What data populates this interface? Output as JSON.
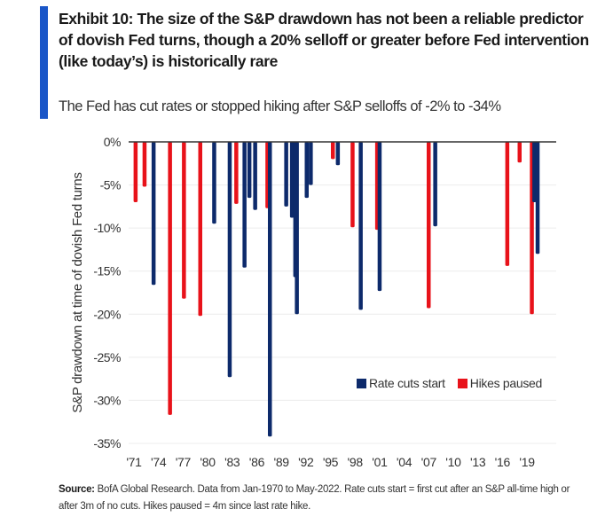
{
  "header": {
    "title": "Exhibit 10: The size of the S&P drawdown  has not been a reliable predictor of dovish Fed turns, though a 20% selloff or greater before Fed intervention (like today’s) is historically rare",
    "subtitle": "The Fed has cut rates or stopped hiking after S&P selloffs of -2% to -34%",
    "accent_color": "#1a56c8"
  },
  "footer": {
    "source_label": "Source:",
    "source_text": " BofA Global Research. Data from Jan-1970 to May-2022. Rate cuts start = first cut after an S&P all-time high or after 3m of no cuts. Hikes paused = 4m since last rate hike."
  },
  "chart_data": {
    "type": "bar",
    "title": "The Fed has cut rates or stopped hiking after S&P selloffs of -2% to -34%",
    "xlabel": "",
    "ylabel": "S&P drawdown at time of dovish Fed turns",
    "ylim": [
      -35,
      0
    ],
    "xlim": [
      1970.8,
      2021.5
    ],
    "yticks": [
      0,
      -5,
      -10,
      -15,
      -20,
      -25,
      -30,
      -35
    ],
    "ytick_labels": [
      "0%",
      "-5%",
      "-10%",
      "-15%",
      "-20%",
      "-25%",
      "-30%",
      "-35%"
    ],
    "xticks": [
      1971,
      1974,
      1977,
      1980,
      1983,
      1986,
      1989,
      1992,
      1995,
      1998,
      2001,
      2004,
      2007,
      2010,
      2013,
      2016,
      2019
    ],
    "xtick_labels": [
      "'71",
      "'74",
      "'77",
      "'80",
      "'83",
      "'86",
      "'89",
      "'92",
      "'95",
      "'98",
      "'01",
      "'04",
      "'07",
      "'10",
      "'13",
      "'16",
      "'19"
    ],
    "grid": true,
    "legend_position": "bottom-right",
    "series": [
      {
        "name": "Rate cuts start",
        "color": "#0d2a6b",
        "points": [
          {
            "x": 1973.4,
            "y": -16.6
          },
          {
            "x": 1980.8,
            "y": -9.5
          },
          {
            "x": 1982.7,
            "y": -27.3
          },
          {
            "x": 1984.5,
            "y": -14.6
          },
          {
            "x": 1985.1,
            "y": -6.5
          },
          {
            "x": 1985.8,
            "y": -7.9
          },
          {
            "x": 1987.6,
            "y": -34.2
          },
          {
            "x": 1989.6,
            "y": -7.5
          },
          {
            "x": 1990.3,
            "y": -8.8
          },
          {
            "x": 1990.7,
            "y": -15.7
          },
          {
            "x": 1990.9,
            "y": -20.0
          },
          {
            "x": 1992.1,
            "y": -6.5
          },
          {
            "x": 1992.6,
            "y": -5.0
          },
          {
            "x": 1995.9,
            "y": -2.7
          },
          {
            "x": 1998.7,
            "y": -19.5
          },
          {
            "x": 2001.0,
            "y": -17.3
          },
          {
            "x": 2007.8,
            "y": -9.8
          },
          {
            "x": 2019.9,
            "y": -7.0
          },
          {
            "x": 2020.3,
            "y": -13.0
          }
        ]
      },
      {
        "name": "Hikes paused",
        "color": "#e8121a",
        "points": [
          {
            "x": 1971.2,
            "y": -7.0
          },
          {
            "x": 1972.3,
            "y": -5.2
          },
          {
            "x": 1975.4,
            "y": -31.7
          },
          {
            "x": 1977.1,
            "y": -18.2
          },
          {
            "x": 1979.1,
            "y": -20.2
          },
          {
            "x": 1983.5,
            "y": -7.2
          },
          {
            "x": 1987.3,
            "y": -7.7
          },
          {
            "x": 1995.3,
            "y": -2.0
          },
          {
            "x": 1997.7,
            "y": -9.9
          },
          {
            "x": 2000.7,
            "y": -10.2
          },
          {
            "x": 2007.0,
            "y": -19.3
          },
          {
            "x": 2016.6,
            "y": -14.4
          },
          {
            "x": 2018.1,
            "y": -2.4
          },
          {
            "x": 2019.6,
            "y": -20.0
          }
        ]
      }
    ]
  }
}
